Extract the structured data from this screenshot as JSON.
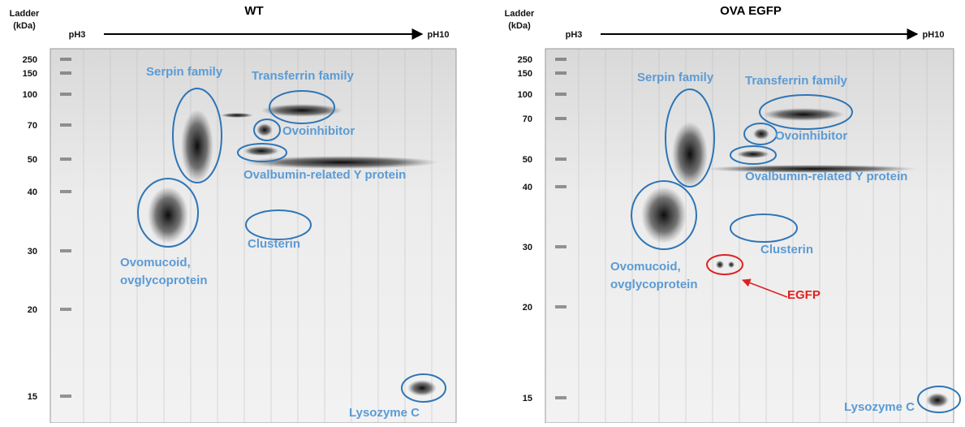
{
  "panels": [
    {
      "title": "WT",
      "ladder_label": [
        "Ladder",
        "(kDa)"
      ],
      "ph_start": "pH3",
      "ph_end": "pH10",
      "ladder": [
        250,
        150,
        100,
        70,
        50,
        40,
        30,
        20,
        15
      ],
      "annotations": [
        "Serpin family",
        "Transferrin family",
        "Ovoinhibitor",
        "Ovalbumin-related Y protein",
        "Clusterin",
        "Ovomucoid,",
        "ovglycoprotein",
        "Lysozyme C"
      ]
    },
    {
      "title": "OVA EGFP",
      "ladder_label": [
        "Ladder",
        "(kDa)"
      ],
      "ph_start": "pH3",
      "ph_end": "pH10",
      "ladder": [
        250,
        150,
        100,
        70,
        50,
        40,
        30,
        20,
        15
      ],
      "annotations": [
        "Serpin family",
        "Transferrin family",
        "Ovoinhibitor",
        "Ovalbumin-related Y protein",
        "Clusterin",
        "Ovomucoid,",
        "ovglycoprotein",
        "EGFP",
        "Lysozyme C"
      ]
    }
  ]
}
